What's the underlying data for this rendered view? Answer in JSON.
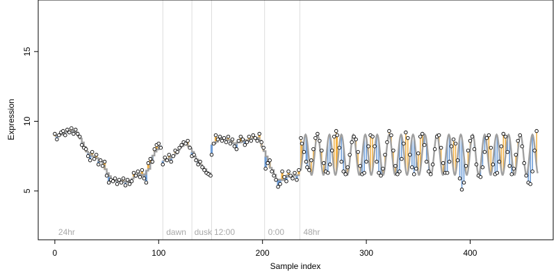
{
  "chart_data": {
    "type": "line",
    "title": "",
    "xlabel": "Sample index",
    "ylabel": "Expression",
    "xlim": [
      -16,
      480
    ],
    "ylim": [
      1.5,
      18.7
    ],
    "x_ticks": [
      0,
      100,
      200,
      300,
      400
    ],
    "y_ticks": [
      5,
      10,
      15
    ],
    "grid": false,
    "colors": {
      "line": "#a0a0a0",
      "above_fit": "#f0b24a",
      "below_fit": "#6f9ed8",
      "point_fill": "#ffffff",
      "point_stroke": "#000000",
      "divider": "#dddddd",
      "annotation": "#a8a8a8"
    },
    "annotations": [
      {
        "x": 2,
        "label": "24hr"
      },
      {
        "x": 106,
        "label": "dawn"
      },
      {
        "x": 133,
        "label": "dusk"
      },
      {
        "x": 152,
        "label": "12:00"
      },
      {
        "x": 204,
        "label": "0:00"
      },
      {
        "x": 238,
        "label": "48hr"
      }
    ],
    "dividers": [
      104,
      132,
      151,
      202,
      236
    ],
    "series": [
      {
        "segment": "24hr",
        "x_range": [
          0,
          103
        ],
        "points": [
          [
            0,
            9.1
          ],
          [
            2,
            8.7
          ],
          [
            4,
            9.0
          ],
          [
            6,
            9.2
          ],
          [
            8,
            9.3
          ],
          [
            10,
            9.0
          ],
          [
            12,
            9.4
          ],
          [
            14,
            9.2
          ],
          [
            16,
            9.5
          ],
          [
            18,
            9.1
          ],
          [
            20,
            9.4
          ],
          [
            22,
            9.1
          ],
          [
            24,
            8.9
          ],
          [
            26,
            8.3
          ],
          [
            28,
            8.1
          ],
          [
            30,
            8.0
          ],
          [
            32,
            7.5
          ],
          [
            34,
            7.2
          ],
          [
            36,
            7.8
          ],
          [
            38,
            7.3
          ],
          [
            40,
            7.6
          ],
          [
            42,
            6.9
          ],
          [
            44,
            7.2
          ],
          [
            46,
            6.8
          ],
          [
            48,
            7.1
          ],
          [
            50,
            6.1
          ],
          [
            52,
            5.6
          ],
          [
            54,
            5.8
          ],
          [
            56,
            5.7
          ],
          [
            58,
            5.9
          ],
          [
            60,
            5.5
          ],
          [
            62,
            5.8
          ],
          [
            64,
            5.6
          ],
          [
            66,
            5.9
          ],
          [
            68,
            5.4
          ],
          [
            70,
            5.8
          ],
          [
            72,
            5.5
          ],
          [
            74,
            5.7
          ],
          [
            76,
            6.3
          ],
          [
            78,
            6.1
          ],
          [
            80,
            6.4
          ],
          [
            82,
            6.0
          ],
          [
            84,
            6.5
          ],
          [
            86,
            5.9
          ],
          [
            88,
            5.6
          ],
          [
            90,
            7.0
          ],
          [
            92,
            7.3
          ],
          [
            94,
            7.1
          ],
          [
            96,
            8.0
          ],
          [
            98,
            8.3
          ],
          [
            100,
            8.4
          ],
          [
            102,
            8.1
          ]
        ]
      },
      {
        "segment": "dawn-dusk",
        "x_range": [
          104,
          150
        ],
        "points": [
          [
            104,
            6.9
          ],
          [
            106,
            7.4
          ],
          [
            108,
            7.2
          ],
          [
            110,
            7.6
          ],
          [
            112,
            7.1
          ],
          [
            114,
            7.5
          ],
          [
            116,
            7.9
          ],
          [
            118,
            7.8
          ],
          [
            120,
            8.1
          ],
          [
            122,
            8.3
          ],
          [
            124,
            8.5
          ],
          [
            126,
            8.4
          ],
          [
            128,
            8.6
          ],
          [
            130,
            8.1
          ],
          [
            132,
            7.5
          ],
          [
            134,
            7.6
          ],
          [
            136,
            7.2
          ],
          [
            138,
            6.9
          ],
          [
            140,
            7.1
          ],
          [
            142,
            6.7
          ],
          [
            144,
            6.5
          ],
          [
            146,
            6.3
          ],
          [
            148,
            6.2
          ],
          [
            150,
            6.1
          ]
        ]
      },
      {
        "segment": "12:00-0:00",
        "x_range": [
          151,
          235
        ],
        "points": [
          [
            151,
            7.6
          ],
          [
            153,
            8.4
          ],
          [
            155,
            9.0
          ],
          [
            157,
            8.7
          ],
          [
            159,
            8.9
          ],
          [
            161,
            8.6
          ],
          [
            163,
            8.8
          ],
          [
            165,
            8.5
          ],
          [
            167,
            8.9
          ],
          [
            169,
            8.4
          ],
          [
            171,
            8.7
          ],
          [
            173,
            8.2
          ],
          [
            175,
            8.0
          ],
          [
            177,
            8.6
          ],
          [
            179,
            8.9
          ],
          [
            181,
            8.7
          ],
          [
            183,
            8.3
          ],
          [
            185,
            8.5
          ],
          [
            187,
            8.9
          ],
          [
            189,
            8.6
          ],
          [
            191,
            9.0
          ],
          [
            193,
            8.8
          ],
          [
            195,
            8.6
          ],
          [
            197,
            9.1
          ],
          [
            199,
            8.5
          ],
          [
            201,
            8.1
          ],
          [
            203,
            6.6
          ],
          [
            205,
            7.0
          ],
          [
            207,
            7.2
          ],
          [
            209,
            6.4
          ],
          [
            211,
            6.1
          ],
          [
            213,
            5.8
          ],
          [
            215,
            5.3
          ],
          [
            217,
            5.5
          ],
          [
            219,
            6.4
          ],
          [
            221,
            6.0
          ],
          [
            223,
            5.7
          ],
          [
            225,
            6.4
          ],
          [
            227,
            6.1
          ],
          [
            229,
            5.9
          ],
          [
            231,
            6.3
          ],
          [
            233,
            5.8
          ],
          [
            235,
            6.5
          ]
        ]
      },
      {
        "segment": "48hr",
        "x_range": [
          237,
          465
        ],
        "period": 11.5,
        "points": [
          [
            237,
            8.8
          ],
          [
            238,
            8.4
          ],
          [
            240,
            7.8
          ],
          [
            242,
            7.1
          ],
          [
            243,
            6.7
          ],
          [
            245,
            6.5
          ],
          [
            247,
            7.2
          ],
          [
            249,
            8.0
          ],
          [
            251,
            8.8
          ],
          [
            253,
            9.1
          ],
          [
            255,
            8.6
          ],
          [
            257,
            7.9
          ],
          [
            259,
            7.0
          ],
          [
            261,
            6.4
          ],
          [
            263,
            6.3
          ],
          [
            265,
            6.9
          ],
          [
            267,
            7.9
          ],
          [
            269,
            8.9
          ],
          [
            271,
            9.3
          ],
          [
            272,
            9.0
          ],
          [
            274,
            8.1
          ],
          [
            276,
            7.1
          ],
          [
            278,
            6.4
          ],
          [
            280,
            6.2
          ],
          [
            282,
            6.7
          ],
          [
            284,
            7.6
          ],
          [
            286,
            8.5
          ],
          [
            288,
            8.9
          ],
          [
            290,
            8.7
          ],
          [
            292,
            7.8
          ],
          [
            294,
            6.8
          ],
          [
            296,
            6.2
          ],
          [
            298,
            6.3
          ],
          [
            300,
            7.1
          ],
          [
            302,
            8.2
          ],
          [
            304,
            9.0
          ],
          [
            306,
            8.9
          ],
          [
            308,
            8.2
          ],
          [
            310,
            7.1
          ],
          [
            312,
            6.3
          ],
          [
            314,
            6.1
          ],
          [
            316,
            6.6
          ],
          [
            318,
            7.6
          ],
          [
            320,
            8.5
          ],
          [
            322,
            9.3
          ],
          [
            324,
            9.0
          ],
          [
            326,
            7.9
          ],
          [
            328,
            6.8
          ],
          [
            330,
            6.2
          ],
          [
            332,
            6.4
          ],
          [
            334,
            7.3
          ],
          [
            336,
            8.4
          ],
          [
            338,
            9.2
          ],
          [
            340,
            8.8
          ],
          [
            342,
            7.6
          ],
          [
            344,
            6.7
          ],
          [
            346,
            6.2
          ],
          [
            348,
            6.6
          ],
          [
            350,
            7.7
          ],
          [
            352,
            8.9
          ],
          [
            354,
            9.1
          ],
          [
            356,
            8.3
          ],
          [
            358,
            7.1
          ],
          [
            360,
            6.4
          ],
          [
            362,
            6.2
          ],
          [
            364,
            6.9
          ],
          [
            366,
            8.0
          ],
          [
            368,
            8.9
          ],
          [
            370,
            9.0
          ],
          [
            372,
            8.1
          ],
          [
            374,
            7.0
          ],
          [
            376,
            6.3
          ],
          [
            378,
            6.3
          ],
          [
            380,
            7.1
          ],
          [
            382,
            8.2
          ],
          [
            384,
            8.7
          ],
          [
            386,
            8.4
          ],
          [
            388,
            7.2
          ],
          [
            390,
            5.9
          ],
          [
            392,
            5.1
          ],
          [
            394,
            5.6
          ],
          [
            396,
            6.8
          ],
          [
            398,
            7.9
          ],
          [
            400,
            8.6
          ],
          [
            402,
            8.9
          ],
          [
            404,
            8.0
          ],
          [
            406,
            6.9
          ],
          [
            408,
            6.1
          ],
          [
            410,
            6.0
          ],
          [
            412,
            6.7
          ],
          [
            414,
            7.8
          ],
          [
            416,
            8.8
          ],
          [
            418,
            9.0
          ],
          [
            420,
            8.1
          ],
          [
            422,
            6.9
          ],
          [
            424,
            6.2
          ],
          [
            426,
            6.3
          ],
          [
            428,
            7.1
          ],
          [
            430,
            8.2
          ],
          [
            432,
            9.1
          ],
          [
            434,
            8.9
          ],
          [
            436,
            7.8
          ],
          [
            438,
            6.8
          ],
          [
            440,
            6.2
          ],
          [
            442,
            6.6
          ],
          [
            444,
            7.6
          ],
          [
            446,
            8.6
          ],
          [
            448,
            9.0
          ],
          [
            450,
            8.2
          ],
          [
            452,
            7.0
          ],
          [
            454,
            6.1
          ],
          [
            456,
            5.6
          ],
          [
            458,
            5.5
          ],
          [
            460,
            6.4
          ],
          [
            462,
            7.9
          ],
          [
            464,
            9.3
          ]
        ]
      }
    ]
  }
}
